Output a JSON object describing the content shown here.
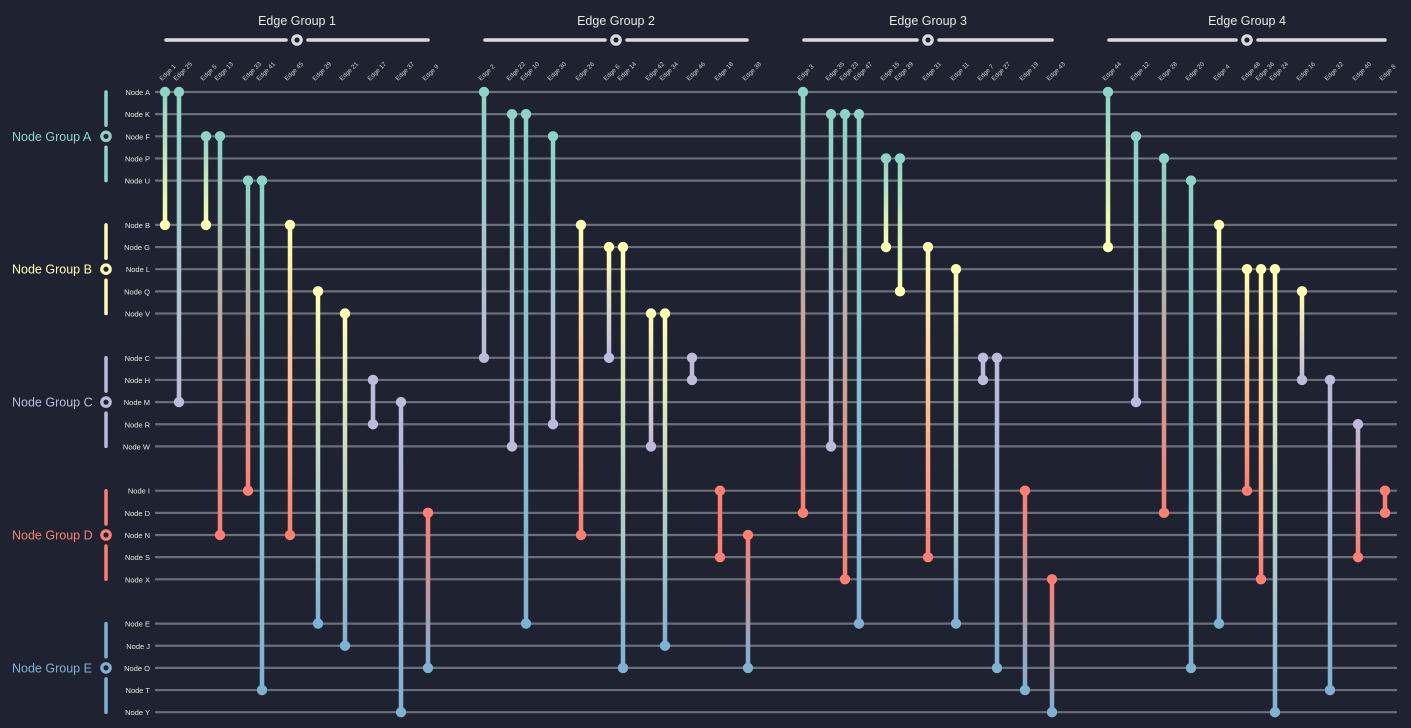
{
  "node_groups": [
    {
      "label": "Node Group A",
      "color": "#8dd3c7",
      "nodes": [
        "Node A",
        "Node K",
        "Node F",
        "Node P",
        "Node U"
      ]
    },
    {
      "label": "Node Group B",
      "color": "#ffffb3",
      "nodes": [
        "Node B",
        "Node G",
        "Node L",
        "Node Q",
        "Node V"
      ]
    },
    {
      "label": "Node Group C",
      "color": "#bebada",
      "nodes": [
        "Node C",
        "Node H",
        "Node M",
        "Node R",
        "Node W"
      ]
    },
    {
      "label": "Node Group D",
      "color": "#fb8072",
      "nodes": [
        "Node I",
        "Node D",
        "Node N",
        "Node S",
        "Node X"
      ]
    },
    {
      "label": "Node Group E",
      "color": "#80b1d3",
      "nodes": [
        "Node E",
        "Node J",
        "Node O",
        "Node T",
        "Node Y"
      ]
    }
  ],
  "edge_groups": [
    {
      "label": "Edge Group 1",
      "edges": [
        {
          "label": "Edge 1",
          "from": "Node A",
          "to": "Node B"
        },
        {
          "label": "Edge 25",
          "from": "Node A",
          "to": "Node M"
        },
        {
          "label": "Edge 5",
          "from": "Node F",
          "to": "Node B"
        },
        {
          "label": "Edge 13",
          "from": "Node F",
          "to": "Node N"
        },
        {
          "label": "Edge 33",
          "from": "Node U",
          "to": "Node I"
        },
        {
          "label": "Edge 41",
          "from": "Node U",
          "to": "Node T"
        },
        {
          "label": "Edge 45",
          "from": "Node B",
          "to": "Node N"
        },
        {
          "label": "Edge 29",
          "from": "Node Q",
          "to": "Node E"
        },
        {
          "label": "Edge 21",
          "from": "Node V",
          "to": "Node J"
        },
        {
          "label": "Edge 17",
          "from": "Node H",
          "to": "Node R"
        },
        {
          "label": "Edge 37",
          "from": "Node M",
          "to": "Node Y"
        },
        {
          "label": "Edge 9",
          "from": "Node D",
          "to": "Node O"
        }
      ]
    },
    {
      "label": "Edge Group 2",
      "edges": [
        {
          "label": "Edge 2",
          "from": "Node A",
          "to": "Node C"
        },
        {
          "label": "Edge 22",
          "from": "Node K",
          "to": "Node W"
        },
        {
          "label": "Edge 10",
          "from": "Node K",
          "to": "Node E"
        },
        {
          "label": "Edge 30",
          "from": "Node F",
          "to": "Node R"
        },
        {
          "label": "Edge 26",
          "from": "Node B",
          "to": "Node N"
        },
        {
          "label": "Edge 6",
          "from": "Node G",
          "to": "Node C"
        },
        {
          "label": "Edge 14",
          "from": "Node G",
          "to": "Node O"
        },
        {
          "label": "Edge 42",
          "from": "Node V",
          "to": "Node W"
        },
        {
          "label": "Edge 34",
          "from": "Node V",
          "to": "Node J"
        },
        {
          "label": "Edge 46",
          "from": "Node C",
          "to": "Node H"
        },
        {
          "label": "Edge 18",
          "from": "Node I",
          "to": "Node S"
        },
        {
          "label": "Edge 38",
          "from": "Node N",
          "to": "Node O"
        }
      ]
    },
    {
      "label": "Edge Group 3",
      "edges": [
        {
          "label": "Edge 3",
          "from": "Node A",
          "to": "Node D"
        },
        {
          "label": "Edge 35",
          "from": "Node K",
          "to": "Node W"
        },
        {
          "label": "Edge 23",
          "from": "Node K",
          "to": "Node X"
        },
        {
          "label": "Edge 47",
          "from": "Node K",
          "to": "Node E"
        },
        {
          "label": "Edge 15",
          "from": "Node P",
          "to": "Node G"
        },
        {
          "label": "Edge 39",
          "from": "Node P",
          "to": "Node Q"
        },
        {
          "label": "Edge 31",
          "from": "Node G",
          "to": "Node S"
        },
        {
          "label": "Edge 11",
          "from": "Node L",
          "to": "Node E"
        },
        {
          "label": "Edge 7",
          "from": "Node C",
          "to": "Node H"
        },
        {
          "label": "Edge 27",
          "from": "Node C",
          "to": "Node O"
        },
        {
          "label": "Edge 19",
          "from": "Node I",
          "to": "Node T"
        },
        {
          "label": "Edge 43",
          "from": "Node X",
          "to": "Node Y"
        }
      ]
    },
    {
      "label": "Edge Group 4",
      "edges": [
        {
          "label": "Edge 44",
          "from": "Node A",
          "to": "Node G"
        },
        {
          "label": "Edge 12",
          "from": "Node F",
          "to": "Node M"
        },
        {
          "label": "Edge 28",
          "from": "Node P",
          "to": "Node D"
        },
        {
          "label": "Edge 20",
          "from": "Node U",
          "to": "Node O"
        },
        {
          "label": "Edge 4",
          "from": "Node B",
          "to": "Node E"
        },
        {
          "label": "Edge 48",
          "from": "Node L",
          "to": "Node I"
        },
        {
          "label": "Edge 36",
          "from": "Node L",
          "to": "Node X"
        },
        {
          "label": "Edge 24",
          "from": "Node L",
          "to": "Node Y"
        },
        {
          "label": "Edge 16",
          "from": "Node Q",
          "to": "Node H"
        },
        {
          "label": "Edge 32",
          "from": "Node H",
          "to": "Node T"
        },
        {
          "label": "Edge 40",
          "from": "Node R",
          "to": "Node S"
        },
        {
          "label": "Edge 8",
          "from": "Node I",
          "to": "Node D"
        }
      ]
    }
  ],
  "colors": {
    "background": "#1f2331",
    "row_line": "#6b6f7c",
    "label_text": "#e6e6e6",
    "slider": "#dcd9e0"
  }
}
